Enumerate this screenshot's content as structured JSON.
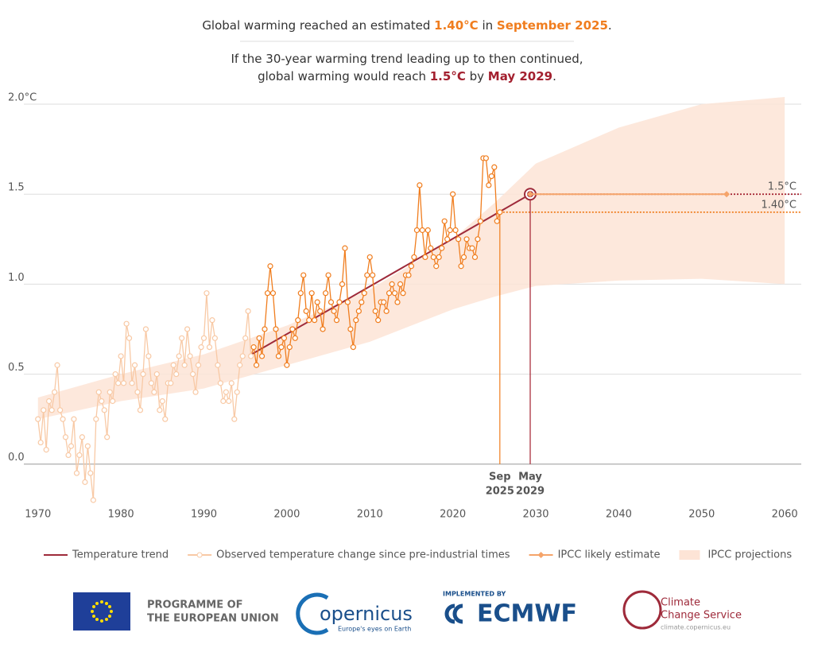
{
  "chart_data": {
    "type": "line",
    "headline": [
      [
        {
          "text": "Global warming reached an estimated "
        },
        {
          "text": "1.40°C",
          "color": "#f07d1e"
        },
        {
          "text": " in "
        },
        {
          "text": "September 2025",
          "color": "#f07d1e"
        },
        {
          "text": "."
        }
      ],
      [
        {
          "text": "If the 30-year warming trend leading up to then continued,"
        }
      ],
      [
        {
          "text": "global warming would reach "
        },
        {
          "text": "1.5°C",
          "color": "#a3202f"
        },
        {
          "text": " by "
        },
        {
          "text": "May 2029",
          "color": "#a3202f"
        },
        {
          "text": "."
        }
      ]
    ],
    "xlim": [
      1968.3,
      2062
    ],
    "ylim": [
      -0.2,
      2.04
    ],
    "xticks": [
      1970,
      1980,
      1990,
      2000,
      2010,
      2020,
      2030,
      2040,
      2050,
      2060
    ],
    "yticks": [
      {
        "value": 0,
        "label": "0.0"
      },
      0.5,
      {
        "value": 1,
        "label": "1.0"
      },
      1.5,
      {
        "value": 2,
        "label": "2.0°C"
      }
    ],
    "grid": true,
    "series": [
      {
        "name": "Temperature trend",
        "kind": "line",
        "color": "#9e2a3a",
        "x": [
          1995.75,
          2029.33
        ],
        "values": [
          0.61,
          1.5
        ]
      },
      {
        "name": "Observed temperature change since pre-industrial times",
        "kind": "line",
        "marker": "circle",
        "color": "#f07d1e",
        "faded_color": "#f8c9a5",
        "x": [
          1970,
          1970.33,
          1970.67,
          1971,
          1971.33,
          1971.67,
          1972,
          1972.33,
          1972.67,
          1973,
          1973.33,
          1973.67,
          1974,
          1974.33,
          1974.67,
          1975,
          1975.33,
          1975.67,
          1976,
          1976.33,
          1976.67,
          1977,
          1977.33,
          1977.67,
          1978,
          1978.33,
          1978.67,
          1979,
          1979.33,
          1979.67,
          1980,
          1980.33,
          1980.67,
          1981,
          1981.33,
          1981.67,
          1982,
          1982.33,
          1982.67,
          1983,
          1983.33,
          1983.67,
          1984,
          1984.33,
          1984.67,
          1985,
          1985.33,
          1985.67,
          1986,
          1986.33,
          1986.67,
          1987,
          1987.33,
          1987.67,
          1988,
          1988.33,
          1988.67,
          1989,
          1989.33,
          1989.67,
          1990,
          1990.33,
          1990.67,
          1991,
          1991.33,
          1991.67,
          1992,
          1992.33,
          1992.67,
          1993,
          1993.33,
          1993.67,
          1994,
          1994.33,
          1994.67,
          1995,
          1995.33,
          1995.67,
          1996,
          1996.33,
          1996.67,
          1997,
          1997.33,
          1997.67,
          1998,
          1998.33,
          1998.67,
          1999,
          1999.33,
          1999.67,
          2000,
          2000.33,
          2000.67,
          2001,
          2001.33,
          2001.67,
          2002,
          2002.33,
          2002.67,
          2003,
          2003.33,
          2003.67,
          2004,
          2004.33,
          2004.67,
          2005,
          2005.33,
          2005.67,
          2006,
          2006.33,
          2006.67,
          2007,
          2007.33,
          2007.67,
          2008,
          2008.33,
          2008.67,
          2009,
          2009.33,
          2009.67,
          2010,
          2010.33,
          2010.67,
          2011,
          2011.33,
          2011.67,
          2012,
          2012.33,
          2012.67,
          2013,
          2013.33,
          2013.67,
          2014,
          2014.33,
          2014.67,
          2015,
          2015.33,
          2015.67,
          2016,
          2016.33,
          2016.67,
          2017,
          2017.33,
          2017.67,
          2018,
          2018.33,
          2018.67,
          2019,
          2019.33,
          2019.67,
          2020,
          2020.33,
          2020.67,
          2021,
          2021.33,
          2021.67,
          2022,
          2022.33,
          2022.67,
          2023,
          2023.33,
          2023.67,
          2024,
          2024.33,
          2024.67,
          2025,
          2025.33,
          2025.67
        ],
        "values": [
          0.25,
          0.12,
          0.3,
          0.08,
          0.35,
          0.3,
          0.4,
          0.55,
          0.3,
          0.25,
          0.15,
          0.05,
          0.1,
          0.25,
          -0.05,
          0.05,
          0.15,
          -0.1,
          0.1,
          -0.05,
          -0.2,
          0.25,
          0.4,
          0.35,
          0.3,
          0.15,
          0.4,
          0.35,
          0.5,
          0.45,
          0.6,
          0.45,
          0.78,
          0.7,
          0.45,
          0.55,
          0.4,
          0.3,
          0.5,
          0.75,
          0.6,
          0.45,
          0.4,
          0.5,
          0.3,
          0.35,
          0.25,
          0.45,
          0.45,
          0.55,
          0.5,
          0.6,
          0.7,
          0.55,
          0.75,
          0.6,
          0.5,
          0.4,
          0.55,
          0.65,
          0.7,
          0.95,
          0.65,
          0.8,
          0.7,
          0.55,
          0.45,
          0.35,
          0.4,
          0.35,
          0.45,
          0.25,
          0.4,
          0.55,
          0.6,
          0.7,
          0.85,
          0.6,
          0.65,
          0.55,
          0.7,
          0.6,
          0.75,
          0.95,
          1.1,
          0.95,
          0.75,
          0.6,
          0.65,
          0.7,
          0.55,
          0.65,
          0.75,
          0.7,
          0.8,
          0.95,
          1.05,
          0.85,
          0.8,
          0.95,
          0.8,
          0.9,
          0.85,
          0.75,
          0.95,
          1.05,
          0.9,
          0.85,
          0.8,
          0.9,
          1.0,
          1.2,
          0.9,
          0.75,
          0.65,
          0.8,
          0.85,
          0.9,
          0.95,
          1.05,
          1.15,
          1.05,
          0.85,
          0.8,
          0.9,
          0.9,
          0.85,
          0.95,
          1.0,
          0.95,
          0.9,
          1.0,
          0.95,
          1.05,
          1.05,
          1.1,
          1.15,
          1.3,
          1.55,
          1.3,
          1.15,
          1.3,
          1.2,
          1.15,
          1.1,
          1.15,
          1.2,
          1.35,
          1.25,
          1.3,
          1.5,
          1.3,
          1.25,
          1.1,
          1.15,
          1.25,
          1.2,
          1.2,
          1.15,
          1.25,
          1.35,
          1.7,
          1.7,
          1.55,
          1.6,
          1.65,
          1.35,
          1.4
        ]
      },
      {
        "name": "IPCC likely estimate",
        "kind": "line",
        "marker": "diamond",
        "color": "#f5a46a",
        "x": [
          2029.33,
          2053
        ],
        "values": [
          1.5,
          1.5
        ]
      },
      {
        "name": "IPCC projections",
        "kind": "band",
        "color": "#fde4d6",
        "x": [
          1970,
          1980,
          1990,
          2000,
          2010,
          2020,
          2025,
          2030,
          2040,
          2050,
          2060
        ],
        "upper": [
          0.37,
          0.5,
          0.61,
          0.77,
          0.97,
          1.25,
          1.45,
          1.67,
          1.87,
          2.0,
          2.04
        ],
        "lower": [
          0.25,
          0.35,
          0.42,
          0.55,
          0.68,
          0.86,
          0.93,
          0.99,
          1.02,
          1.03,
          1.0
        ]
      }
    ],
    "markers": [
      {
        "x": 2025.67,
        "label": [
          "Sep",
          "2025"
        ],
        "value": 1.4,
        "value_label": "1.40°C",
        "color": "#f07d1e"
      },
      {
        "x": 2029.33,
        "label": [
          "May",
          "2029"
        ],
        "value": 1.5,
        "value_label": "1.5°C",
        "color": "#a3202f"
      }
    ]
  },
  "logos": {
    "eu": [
      "PROGRAMME OF",
      "THE EUROPEAN UNION"
    ],
    "copernicus": "opernicus",
    "copernicus_tagline": "Europe's eyes on Earth",
    "implemented_by": "IMPLEMENTED BY",
    "ecmwf": "ECMWF",
    "c3s": [
      "Climate",
      "Change Service"
    ],
    "c3s_url": "climate.copernicus.eu"
  }
}
